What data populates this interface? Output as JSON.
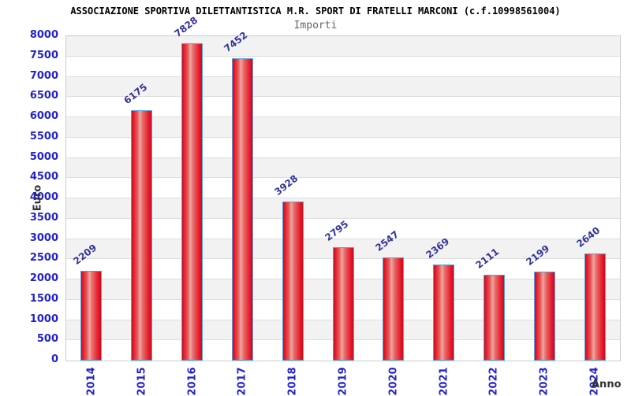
{
  "header": {
    "title": "ASSOCIAZIONE SPORTIVA DILETTANTISTICA M.R. SPORT DI FRATELLI MARCONI (c.f.10998561004)",
    "subtitle": "Importi"
  },
  "chart_data": {
    "type": "bar",
    "title": "ASSOCIAZIONE SPORTIVA DILETTANTISTICA M.R. SPORT DI FRATELLI MARCONI (c.f.10998561004)",
    "subtitle": "Importi",
    "xlabel": "Anno",
    "ylabel": "Euro",
    "categories": [
      "2014",
      "2015",
      "2016",
      "2017",
      "2018",
      "2019",
      "2020",
      "2021",
      "2022",
      "2023",
      "2024"
    ],
    "values": [
      2209,
      6175,
      7828,
      7452,
      3928,
      2795,
      2547,
      2369,
      2111,
      2199,
      2640
    ],
    "ylim": [
      0,
      8000
    ],
    "yticks": [
      0,
      500,
      1000,
      1500,
      2000,
      2500,
      3000,
      3500,
      4000,
      4500,
      5000,
      5500,
      6000,
      6500,
      7000,
      7500,
      8000
    ],
    "grid": true,
    "legend_position": "none",
    "bar_value_label_rotation_deg": -38,
    "x_tick_rotation_deg": -90,
    "colors": {
      "bar_fill": "#e8192a",
      "bar_fill_light": "#f0a6a2",
      "bar_fill_dark": "#c01020",
      "bar_border": "#58a0dd",
      "axis_tick_label": "#2222cc",
      "bar_value_label": "#333399",
      "axis_title": "#333333",
      "band_shade": "#f2f2f2",
      "gridline": "#dddddd",
      "plot_border": "#cccccc",
      "title": "#000000",
      "subtitle": "#666666",
      "background": "#ffffff"
    }
  }
}
